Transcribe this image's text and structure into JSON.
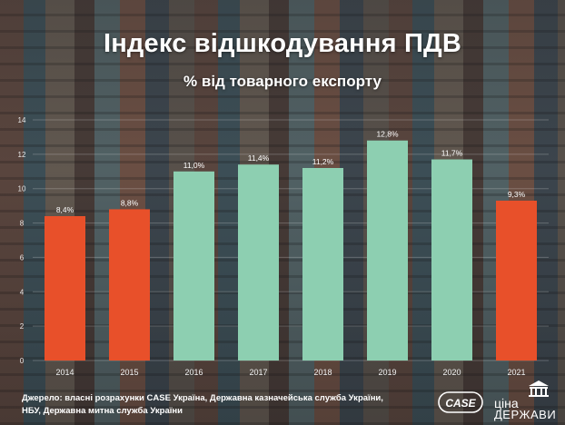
{
  "header": {
    "title": "Індекс відшкодування ПДВ",
    "subtitle": "% від товарного експорту"
  },
  "chart_data": {
    "type": "bar",
    "title": "Індекс відшкодування ПДВ",
    "subtitle": "% від товарного експорту",
    "xlabel": "",
    "ylabel": "",
    "categories": [
      "2014",
      "2015",
      "2016",
      "2017",
      "2018",
      "2019",
      "2020",
      "2021"
    ],
    "values": [
      8.4,
      8.8,
      11.0,
      11.4,
      11.2,
      12.8,
      11.7,
      9.3
    ],
    "data_labels": [
      "8,4%",
      "8,8%",
      "11,0%",
      "11,4%",
      "11,2%",
      "12,8%",
      "11,7%",
      "9,3%"
    ],
    "bar_colors": [
      "#e8502a",
      "#e8502a",
      "#8dcfb1",
      "#8dcfb1",
      "#8dcfb1",
      "#8dcfb1",
      "#8dcfb1",
      "#e8502a"
    ],
    "ylim": [
      0,
      14
    ],
    "yticks": [
      0,
      2,
      4,
      6,
      8,
      10,
      12,
      14
    ],
    "grid": true
  },
  "footer": {
    "source_line1": "Джерело: власні розрахунки CASE Україна, Державна казначейська служба України,",
    "source_line2": "НБУ, Державна митна служба України",
    "logo_case_text": "CASE",
    "logo_cina_top": "ціна",
    "logo_cina_bottom": "ДЕРЖАВИ"
  },
  "colors": {
    "orange": "#e8502a",
    "mint": "#8dcfb1"
  }
}
